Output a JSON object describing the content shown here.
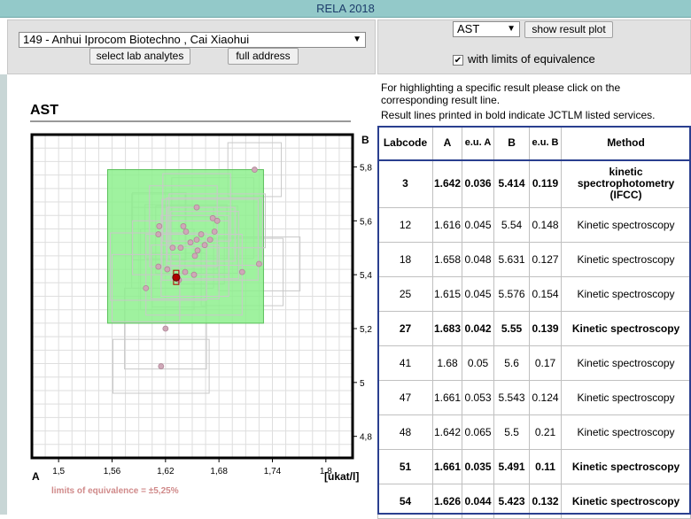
{
  "window": {
    "title": "RELA 2018"
  },
  "lab_select": {
    "value": "149 - Anhui Iprocom Biotechno , Cai Xiaohui"
  },
  "buttons": {
    "select_analytes": "select lab analytes",
    "full_address": "full address",
    "show_plot": "show result plot"
  },
  "analyte_select": {
    "value": "AST"
  },
  "equivalence_checkbox": {
    "label": "with limits of equivalence",
    "checked": true
  },
  "info": {
    "line1": "For highlighting a specific result please click on the",
    "line2": "corresponding result line.",
    "line3": "Result lines printed in bold indicate JCTLM listed services."
  },
  "plot": {
    "analyte": "AST",
    "axis_a_label": "A",
    "axis_b_label": "B",
    "unit_label": "[ukat/l]",
    "limits_text": "limits of equivalence = ±5,25%",
    "x_ticks": [
      "1,5",
      "1,56",
      "1,62",
      "1,68",
      "1,74",
      "1,8"
    ],
    "y_ticks": [
      "5,8",
      "5,6",
      "5,4",
      "5,2",
      "5",
      "4,8"
    ],
    "colors": {
      "equivalence_box": "#8ef08e",
      "highlight_point": "#b00000",
      "points": "#cfa8b8"
    }
  },
  "chart_data": {
    "type": "scatter",
    "xlabel": "A",
    "ylabel": "B",
    "unit": "[ukat/l]",
    "xlim": [
      1.47,
      1.83
    ],
    "ylim": [
      4.72,
      5.92
    ],
    "equivalence_limits_pct": 5.25,
    "equivalence_box": {
      "x": [
        1.555,
        1.73
      ],
      "y": [
        5.22,
        5.79
      ]
    },
    "highlight": {
      "x": 1.632,
      "y": 5.39
    },
    "points": [
      {
        "x": 1.72,
        "y": 5.79
      },
      {
        "x": 1.655,
        "y": 5.65
      },
      {
        "x": 1.673,
        "y": 5.61
      },
      {
        "x": 1.678,
        "y": 5.6
      },
      {
        "x": 1.613,
        "y": 5.58
      },
      {
        "x": 1.64,
        "y": 5.58
      },
      {
        "x": 1.643,
        "y": 5.56
      },
      {
        "x": 1.675,
        "y": 5.56
      },
      {
        "x": 1.612,
        "y": 5.55
      },
      {
        "x": 1.66,
        "y": 5.55
      },
      {
        "x": 1.655,
        "y": 5.53
      },
      {
        "x": 1.67,
        "y": 5.53
      },
      {
        "x": 1.648,
        "y": 5.52
      },
      {
        "x": 1.664,
        "y": 5.51
      },
      {
        "x": 1.628,
        "y": 5.5
      },
      {
        "x": 1.637,
        "y": 5.5
      },
      {
        "x": 1.656,
        "y": 5.49
      },
      {
        "x": 1.653,
        "y": 5.47
      },
      {
        "x": 1.725,
        "y": 5.44
      },
      {
        "x": 1.612,
        "y": 5.43
      },
      {
        "x": 1.622,
        "y": 5.42
      },
      {
        "x": 1.642,
        "y": 5.41
      },
      {
        "x": 1.706,
        "y": 5.41
      },
      {
        "x": 1.652,
        "y": 5.4
      },
      {
        "x": 1.635,
        "y": 5.38
      },
      {
        "x": 1.598,
        "y": 5.35
      },
      {
        "x": 1.62,
        "y": 5.2
      },
      {
        "x": 1.615,
        "y": 5.06
      }
    ]
  },
  "table": {
    "headers": {
      "labcode": "Labcode",
      "a": "A",
      "eu_a": "e.u. A",
      "b": "B",
      "eu_b": "e.u. B",
      "method": "Method"
    },
    "rows": [
      {
        "labcode": "3",
        "a": "1.642",
        "eu_a": "0.036",
        "b": "5.414",
        "eu_b": "0.119",
        "method": "kinetic spectrophotometry (IFCC)",
        "bold": true
      },
      {
        "labcode": "12",
        "a": "1.616",
        "eu_a": "0.045",
        "b": "5.54",
        "eu_b": "0.148",
        "method": "Kinetic spectroscopy",
        "bold": false
      },
      {
        "labcode": "18",
        "a": "1.658",
        "eu_a": "0.048",
        "b": "5.631",
        "eu_b": "0.127",
        "method": "Kinetic spectroscopy",
        "bold": false
      },
      {
        "labcode": "25",
        "a": "1.615",
        "eu_a": "0.045",
        "b": "5.576",
        "eu_b": "0.154",
        "method": "Kinetic spectroscopy",
        "bold": false
      },
      {
        "labcode": "27",
        "a": "1.683",
        "eu_a": "0.042",
        "b": "5.55",
        "eu_b": "0.139",
        "method": "Kinetic spectroscopy",
        "bold": true
      },
      {
        "labcode": "41",
        "a": "1.68",
        "eu_a": "0.05",
        "b": "5.6",
        "eu_b": "0.17",
        "method": "Kinetic spectroscopy",
        "bold": false
      },
      {
        "labcode": "47",
        "a": "1.661",
        "eu_a": "0.053",
        "b": "5.543",
        "eu_b": "0.124",
        "method": "Kinetic spectroscopy",
        "bold": false
      },
      {
        "labcode": "48",
        "a": "1.642",
        "eu_a": "0.065",
        "b": "5.5",
        "eu_b": "0.21",
        "method": "Kinetic spectroscopy",
        "bold": false
      },
      {
        "labcode": "51",
        "a": "1.661",
        "eu_a": "0.035",
        "b": "5.491",
        "eu_b": "0.11",
        "method": "Kinetic spectroscopy",
        "bold": true
      },
      {
        "labcode": "54",
        "a": "1.626",
        "eu_a": "0.044",
        "b": "5.423",
        "eu_b": "0.132",
        "method": "Kinetic spectroscopy",
        "bold": true
      }
    ]
  }
}
